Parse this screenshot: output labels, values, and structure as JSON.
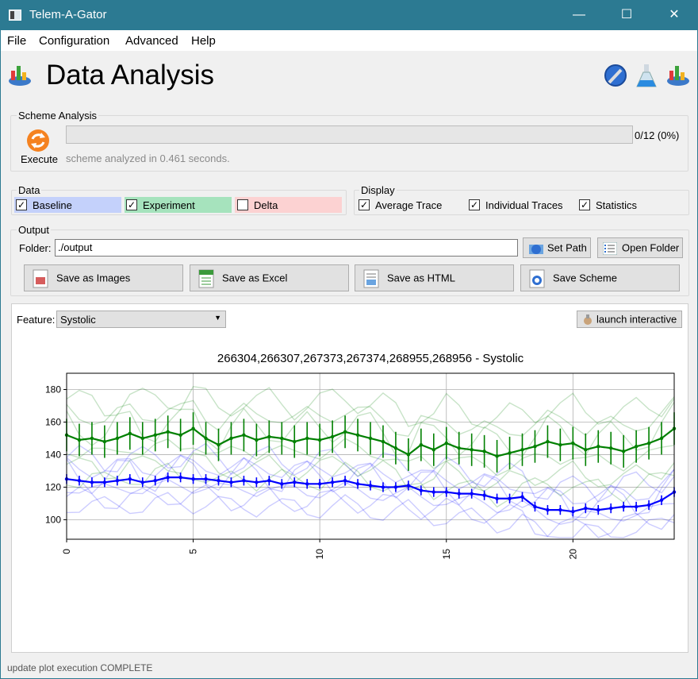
{
  "window": {
    "title": "Telem-A-Gator"
  },
  "menu": [
    "File",
    "Configuration",
    "Advanced",
    "Help"
  ],
  "header": {
    "title": "Data Analysis"
  },
  "scheme": {
    "group_title": "Scheme Analysis",
    "execute_label": "Execute",
    "progress_text": "0/12 (0%)",
    "progress_value": 0,
    "status": "scheme analyzed in 0.461 seconds."
  },
  "data_group": {
    "title": "Data",
    "items": [
      {
        "label": "Baseline",
        "checked": true,
        "color": "#c4d1fb"
      },
      {
        "label": "Experiment",
        "checked": true,
        "color": "#a6e3bd"
      },
      {
        "label": "Delta",
        "checked": false,
        "color": "#fcd2d2"
      }
    ]
  },
  "display_group": {
    "title": "Display",
    "items": [
      {
        "label": "Average Trace",
        "checked": true
      },
      {
        "label": "Individual Traces",
        "checked": true
      },
      {
        "label": "Statistics",
        "checked": true
      }
    ]
  },
  "output": {
    "title": "Output",
    "folder_label": "Folder:",
    "folder_value": "./output",
    "set_path": "Set Path",
    "open_folder": "Open Folder",
    "save_images": "Save as Images",
    "save_excel": "Save as Excel",
    "save_html": "Save as HTML",
    "save_scheme": "Save Scheme"
  },
  "plot": {
    "feature_label": "Feature:",
    "feature_value": "Systolic",
    "launch_label": "launch interactive"
  },
  "chart_data": {
    "type": "line",
    "title": "266304,266307,267373,267374,268955,268956 - Systolic",
    "xlim": [
      0,
      24
    ],
    "ylim": [
      88,
      190
    ],
    "xticks": [
      "0",
      "5",
      "10",
      "15",
      "20"
    ],
    "yticks": [
      "100",
      "120",
      "140",
      "160",
      "180"
    ],
    "grid": true,
    "series": [
      {
        "color": "#008000",
        "x": [
          0,
          0.5,
          1,
          1.5,
          2,
          2.5,
          3,
          3.5,
          4,
          4.5,
          5,
          5.5,
          6,
          6.5,
          7,
          7.5,
          8,
          8.5,
          9,
          9.5,
          10,
          10.5,
          11,
          11.5,
          12,
          12.5,
          13,
          13.5,
          14,
          14.5,
          15,
          15.5,
          16,
          16.5,
          17,
          17.5,
          18,
          18.5,
          19,
          19.5,
          20,
          20.5,
          21,
          21.5,
          22,
          22.5,
          23,
          23.5,
          24
        ],
        "y": [
          152,
          149,
          150,
          148,
          150,
          153,
          150,
          152,
          154,
          152,
          156,
          150,
          146,
          150,
          152,
          149,
          151,
          150,
          148,
          150,
          149,
          151,
          154,
          152,
          150,
          148,
          144,
          140,
          146,
          143,
          147,
          144,
          143,
          142,
          139,
          141,
          143,
          145,
          148,
          146,
          147,
          143,
          145,
          144,
          142,
          145,
          147,
          150,
          156
        ]
      },
      {
        "color": "#0000ff",
        "x": [
          0,
          0.5,
          1,
          1.5,
          2,
          2.5,
          3,
          3.5,
          4,
          4.5,
          5,
          5.5,
          6,
          6.5,
          7,
          7.5,
          8,
          8.5,
          9,
          9.5,
          10,
          10.5,
          11,
          11.5,
          12,
          12.5,
          13,
          13.5,
          14,
          14.5,
          15,
          15.5,
          16,
          16.5,
          17,
          17.5,
          18,
          18.5,
          19,
          19.5,
          20,
          20.5,
          21,
          21.5,
          22,
          22.5,
          23,
          23.5,
          24
        ],
        "y": [
          125,
          124,
          123,
          123,
          124,
          125,
          123,
          124,
          126,
          126,
          125,
          125,
          124,
          123,
          124,
          123,
          124,
          122,
          123,
          122,
          122,
          123,
          124,
          122,
          121,
          120,
          120,
          121,
          118,
          117,
          117,
          116,
          116,
          115,
          113,
          113,
          114,
          108,
          106,
          106,
          105,
          107,
          106,
          107,
          108,
          108,
          109,
          112,
          117
        ]
      }
    ]
  }
}
